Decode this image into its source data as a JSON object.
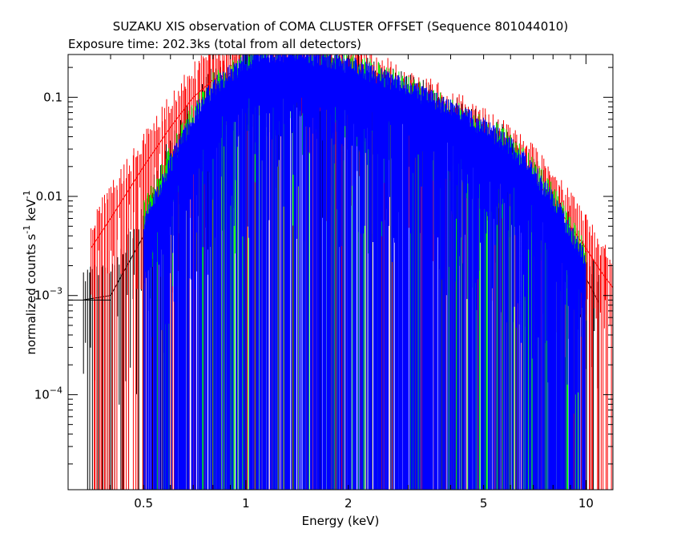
{
  "chart_data": {
    "type": "line",
    "title": "SUZAKU XIS observation of COMA CLUSTER OFFSET (Sequence 801044010)",
    "subtitle": "Exposure time: 202.3ks (total from all detectors)",
    "xlabel": "Energy (keV)",
    "ylabel": "normalized counts s^-1 keV^-1",
    "ylabel_parts": {
      "a": "normalized counts s",
      "b": "-1",
      "c": " keV",
      "d": "-1"
    },
    "x_scale": "log",
    "y_scale": "log",
    "xlim": [
      0.3,
      12
    ],
    "ylim": [
      1.1e-05,
      0.27
    ],
    "x_ticks": [
      {
        "v": 0.5,
        "label": "0.5"
      },
      {
        "v": 1,
        "label": "1"
      },
      {
        "v": 2,
        "label": "2"
      },
      {
        "v": 5,
        "label": "5"
      },
      {
        "v": 10,
        "label": "10"
      }
    ],
    "y_ticks": [
      {
        "v": 0.1,
        "label": "0.1",
        "exp": ""
      },
      {
        "v": 0.01,
        "label": "0.01",
        "exp": ""
      },
      {
        "v": 0.001,
        "label": "10",
        "exp": "−3"
      },
      {
        "v": 0.0001,
        "label": "10",
        "exp": "−4"
      }
    ],
    "grid": false,
    "colors": {
      "black": "#000000",
      "red": "#ff0000",
      "green": "#00ff00",
      "blue": "#0000ff"
    },
    "series": [
      {
        "color": "#000000",
        "x": [
          0.33,
          0.4,
          0.5,
          0.6,
          0.7,
          0.8,
          1.0,
          1.2,
          1.5,
          2.0,
          2.5,
          3.0,
          4.0,
          5.0,
          6.0,
          7.0,
          8.0,
          9.0,
          10.0,
          11.0
        ],
        "values": [
          0.0009,
          0.001,
          0.004,
          0.02,
          0.05,
          0.1,
          0.15,
          0.18,
          0.17,
          0.14,
          0.1,
          0.08,
          0.05,
          0.033,
          0.022,
          0.012,
          0.006,
          0.003,
          0.0015,
          0.0008
        ]
      },
      {
        "color": "#ff0000",
        "x": [
          0.35,
          0.4,
          0.5,
          0.6,
          0.7,
          0.8,
          1.0,
          1.2,
          1.5,
          2.0,
          2.5,
          3.0,
          4.0,
          5.0,
          6.0,
          7.0,
          8.0,
          9.0,
          10.0,
          11.0,
          12.0
        ],
        "values": [
          0.003,
          0.006,
          0.02,
          0.05,
          0.1,
          0.15,
          0.2,
          0.22,
          0.2,
          0.16,
          0.12,
          0.09,
          0.055,
          0.036,
          0.025,
          0.015,
          0.009,
          0.005,
          0.003,
          0.0018,
          0.0012
        ]
      },
      {
        "color": "#00ff00",
        "x": [
          0.5,
          0.6,
          0.7,
          0.8,
          1.0,
          1.2,
          1.5,
          2.0,
          2.5,
          3.0,
          4.0,
          5.0,
          6.0,
          7.0,
          8.0,
          9.0,
          10.0
        ],
        "values": [
          0.004,
          0.015,
          0.04,
          0.08,
          0.14,
          0.17,
          0.16,
          0.13,
          0.1,
          0.075,
          0.045,
          0.03,
          0.02,
          0.011,
          0.006,
          0.003,
          0.0016
        ]
      },
      {
        "color": "#0000ff",
        "x": [
          0.5,
          0.6,
          0.7,
          0.8,
          1.0,
          1.2,
          1.5,
          2.0,
          2.5,
          3.0,
          4.0,
          5.0,
          6.0,
          7.0,
          8.0,
          9.0,
          10.0
        ],
        "values": [
          0.003,
          0.012,
          0.035,
          0.07,
          0.13,
          0.16,
          0.15,
          0.12,
          0.09,
          0.07,
          0.043,
          0.028,
          0.018,
          0.01,
          0.005,
          0.0025,
          0.0012
        ]
      }
    ]
  }
}
